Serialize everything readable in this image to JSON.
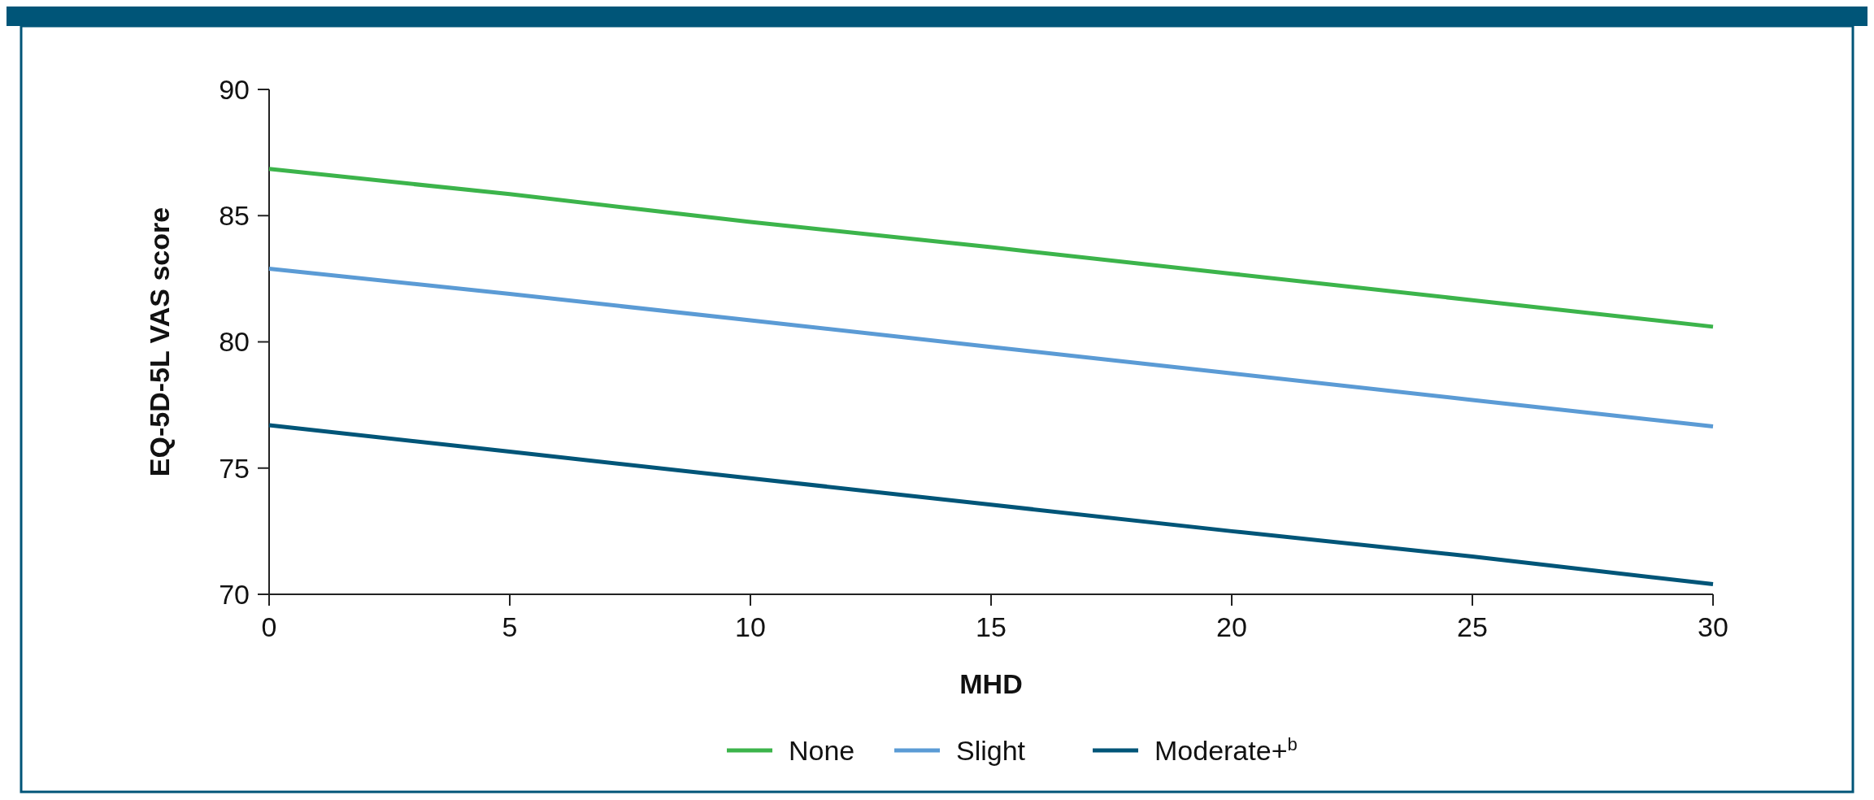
{
  "chart_data": {
    "type": "line",
    "xlabel": "MHD",
    "ylabel": "EQ-5D-5L VAS score",
    "x": [
      0,
      5,
      10,
      15,
      20,
      25,
      30
    ],
    "xlim": [
      0,
      30
    ],
    "xticks": [
      0,
      5,
      10,
      15,
      20,
      25,
      30
    ],
    "ylim": [
      70,
      90
    ],
    "yticks": [
      70,
      75,
      80,
      85,
      90
    ],
    "legend": "bottom",
    "grid": false,
    "marker": "none",
    "line_style": "solid",
    "series": [
      {
        "name": "None",
        "color": "#3cb44b",
        "values": [
          86.85,
          85.85,
          84.75,
          83.75,
          82.7,
          81.65,
          80.6
        ]
      },
      {
        "name": "Slight",
        "color": "#5b9bd5",
        "values": [
          82.9,
          81.9,
          80.85,
          79.8,
          78.75,
          77.7,
          76.65
        ]
      },
      {
        "name": "Moderate+$^{b}$",
        "color": "#005578",
        "values": [
          76.7,
          75.65,
          74.6,
          73.55,
          72.5,
          71.5,
          70.4
        ]
      }
    ]
  }
}
